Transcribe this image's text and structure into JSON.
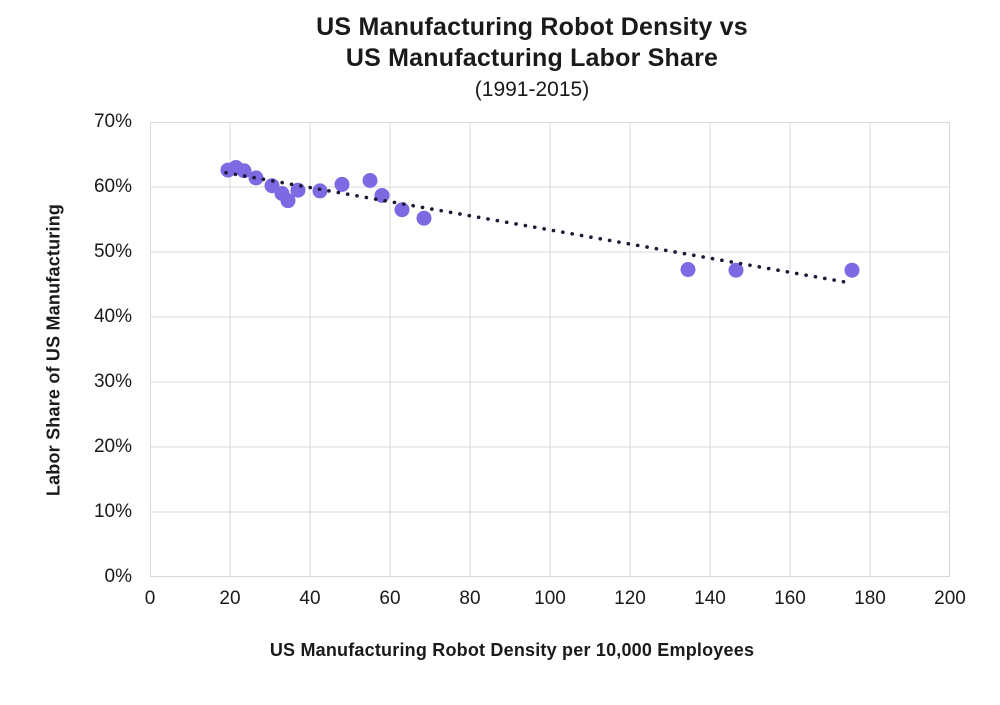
{
  "header": {
    "title_line1": "US Manufacturing Robot Density vs",
    "title_line2": "US Manufacturing Labor Share",
    "subtitle": "(1991-2015)"
  },
  "chart_data": {
    "type": "scatter",
    "title": "US Manufacturing Robot Density vs US Manufacturing Labor Share (1991-2015)",
    "xlabel": "US Manufacturing Robot Density per 10,000 Employees",
    "ylabel": "Labor Share of US Manufacturing",
    "xlim": [
      0,
      200
    ],
    "ylim": [
      0,
      70
    ],
    "grid": true,
    "legend": false,
    "x_ticks": [
      {
        "v": 0,
        "label": "0"
      },
      {
        "v": 20,
        "label": "20"
      },
      {
        "v": 40,
        "label": "40"
      },
      {
        "v": 60,
        "label": "60"
      },
      {
        "v": 80,
        "label": "80"
      },
      {
        "v": 100,
        "label": "100"
      },
      {
        "v": 120,
        "label": "120"
      },
      {
        "v": 140,
        "label": "140"
      },
      {
        "v": 160,
        "label": "160"
      },
      {
        "v": 180,
        "label": "180"
      },
      {
        "v": 200,
        "label": "200"
      }
    ],
    "y_ticks": [
      {
        "v": 0,
        "label": "0%"
      },
      {
        "v": 10,
        "label": "10%"
      },
      {
        "v": 20,
        "label": "20%"
      },
      {
        "v": 30,
        "label": "30%"
      },
      {
        "v": 40,
        "label": "40%"
      },
      {
        "v": 50,
        "label": "50%"
      },
      {
        "v": 60,
        "label": "60%"
      },
      {
        "v": 70,
        "label": "70%"
      }
    ],
    "points": [
      {
        "x": 19.5,
        "y": 62.6
      },
      {
        "x": 21.5,
        "y": 63.0
      },
      {
        "x": 23.5,
        "y": 62.5
      },
      {
        "x": 26.5,
        "y": 61.4
      },
      {
        "x": 30.5,
        "y": 60.2
      },
      {
        "x": 33.0,
        "y": 59.0
      },
      {
        "x": 34.5,
        "y": 57.9
      },
      {
        "x": 37.0,
        "y": 59.5
      },
      {
        "x": 42.5,
        "y": 59.4
      },
      {
        "x": 48.0,
        "y": 60.4
      },
      {
        "x": 55.0,
        "y": 61.0
      },
      {
        "x": 58.0,
        "y": 58.7
      },
      {
        "x": 63.0,
        "y": 56.5
      },
      {
        "x": 68.5,
        "y": 55.2
      },
      {
        "x": 134.5,
        "y": 47.3
      },
      {
        "x": 146.5,
        "y": 47.2
      },
      {
        "x": 175.5,
        "y": 47.2
      }
    ],
    "trendline": {
      "style": "dotted",
      "x1": 19,
      "y1": 62.2,
      "x2": 174.5,
      "y2": 45.3
    },
    "colors": {
      "point": "#7d69e1",
      "trend": "#1b1b38",
      "grid": "#d9d9d9",
      "text": "#1a1a1a",
      "background": "#ffffff"
    },
    "point_radius": 7.5
  }
}
